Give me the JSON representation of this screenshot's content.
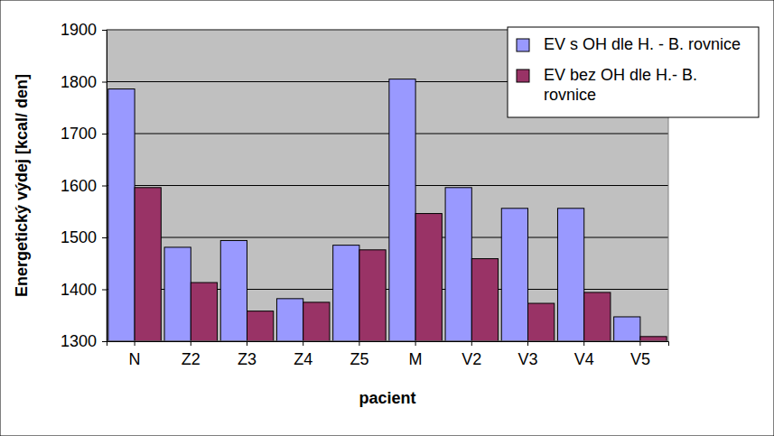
{
  "chart_data": {
    "type": "bar",
    "x_label": "pacient",
    "y_label": "Energetický výdej [kcal/ den]",
    "categories": [
      "N",
      "Z2",
      "Z3",
      "Z4",
      "Z5",
      "M",
      "V2",
      "V3",
      "V4",
      "V5"
    ],
    "series": [
      {
        "name": "EV s OH dle H. - B. rovnice",
        "color": "#9999ff",
        "values": [
          1786,
          1481,
          1494,
          1382,
          1485,
          1805,
          1596,
          1556,
          1556,
          1347
        ]
      },
      {
        "name": "EV bez OH dle H.- B. rovnice",
        "color": "#993366",
        "values": [
          1596,
          1413,
          1358,
          1375,
          1476,
          1546,
          1459,
          1373,
          1394,
          1309
        ]
      }
    ],
    "ylim": [
      1300,
      1900
    ],
    "yticks": [
      1300,
      1400,
      1500,
      1600,
      1700,
      1800,
      1900
    ],
    "grid": true,
    "legend": "top-right"
  }
}
